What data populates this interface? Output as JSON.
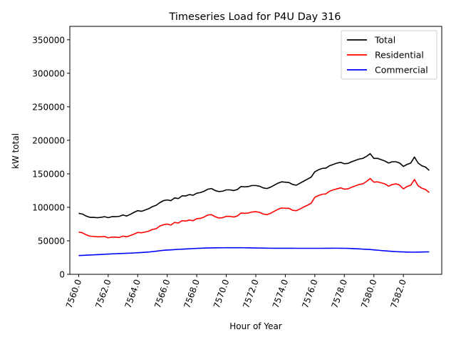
{
  "chart_data": {
    "type": "line",
    "title": "Timeseries Load for P4U   Day 316",
    "xlabel": "Hour of Year",
    "ylabel": "kW total",
    "xlim": [
      7559.4,
      7584.6
    ],
    "ylim": [
      0,
      370000
    ],
    "x_ticks": [
      7560,
      7562,
      7564,
      7566,
      7568,
      7570,
      7572,
      7574,
      7576,
      7578,
      7580,
      7582
    ],
    "x_tick_labels": [
      "7560.0",
      "7562.0",
      "7564.0",
      "7566.0",
      "7568.0",
      "7570.0",
      "7572.0",
      "7574.0",
      "7576.0",
      "7578.0",
      "7580.0",
      "7582.0"
    ],
    "y_ticks": [
      0,
      50000,
      100000,
      150000,
      200000,
      250000,
      300000,
      350000
    ],
    "y_tick_labels": [
      "0",
      "50000",
      "100000",
      "150000",
      "200000",
      "250000",
      "300000",
      "350000"
    ],
    "grid": false,
    "legend_position": "top-right",
    "x": [
      7560.0,
      7560.25,
      7560.5,
      7560.75,
      7561.0,
      7561.25,
      7561.5,
      7561.75,
      7562.0,
      7562.25,
      7562.5,
      7562.75,
      7563.0,
      7563.25,
      7563.5,
      7563.75,
      7564.0,
      7564.25,
      7564.5,
      7564.75,
      7565.0,
      7565.25,
      7565.5,
      7565.75,
      7566.0,
      7566.25,
      7566.5,
      7566.75,
      7567.0,
      7567.25,
      7567.5,
      7567.75,
      7568.0,
      7568.25,
      7568.5,
      7568.75,
      7569.0,
      7569.25,
      7569.5,
      7569.75,
      7570.0,
      7570.25,
      7570.5,
      7570.75,
      7571.0,
      7571.25,
      7571.5,
      7571.75,
      7572.0,
      7572.25,
      7572.5,
      7572.75,
      7573.0,
      7573.25,
      7573.5,
      7573.75,
      7574.0,
      7574.25,
      7574.5,
      7574.75,
      7575.0,
      7575.25,
      7575.5,
      7575.75,
      7576.0,
      7576.25,
      7576.5,
      7576.75,
      7577.0,
      7577.25,
      7577.5,
      7577.75,
      7578.0,
      7578.25,
      7578.5,
      7578.75,
      7579.0,
      7579.25,
      7579.5,
      7579.75,
      7580.0,
      7580.25,
      7580.5,
      7580.75,
      7581.0,
      7581.25,
      7581.5,
      7581.75,
      7582.0,
      7582.25,
      7582.5,
      7582.75,
      7583.0,
      7583.25,
      7583.5,
      7583.75
    ],
    "series": [
      {
        "name": "Total",
        "color": "#000000",
        "values": [
          91000,
          90000,
          87000,
          85000,
          85000,
          84500,
          85000,
          86000,
          84500,
          86000,
          86000,
          86500,
          88500,
          87000,
          89500,
          92500,
          95000,
          94000,
          96000,
          98000,
          101000,
          103000,
          107000,
          110000,
          111000,
          110000,
          114000,
          113000,
          117000,
          117000,
          119000,
          118000,
          121000,
          122000,
          124000,
          127000,
          128000,
          125000,
          123500,
          124000,
          126000,
          126000,
          125000,
          126500,
          131000,
          130500,
          131000,
          132500,
          132500,
          131500,
          129000,
          128000,
          130000,
          133000,
          136000,
          138000,
          137500,
          137000,
          134000,
          133000,
          136000,
          139000,
          142000,
          145000,
          153000,
          156000,
          158000,
          158500,
          162000,
          164000,
          166000,
          167000,
          165000,
          165500,
          168000,
          170000,
          172000,
          173000,
          176000,
          180000,
          173000,
          173000,
          171000,
          169000,
          166000,
          168000,
          168000,
          166000,
          161000,
          164000,
          166000,
          175000,
          166000,
          162000,
          160000,
          155000
        ]
      },
      {
        "name": "Residential",
        "color": "#ff0000",
        "values": [
          63000,
          62000,
          59000,
          57000,
          56500,
          56000,
          56000,
          56500,
          54500,
          55500,
          55500,
          55000,
          57000,
          56000,
          58000,
          60000,
          62500,
          62000,
          63000,
          64500,
          67000,
          68000,
          72000,
          74000,
          75000,
          73500,
          77500,
          76500,
          80000,
          79500,
          81000,
          80000,
          83000,
          83500,
          85500,
          88500,
          89000,
          86000,
          84000,
          84500,
          86500,
          86500,
          85500,
          87000,
          91500,
          91000,
          91500,
          93000,
          93500,
          92500,
          90000,
          89000,
          91000,
          94000,
          97000,
          99000,
          98500,
          98500,
          95500,
          95000,
          97500,
          100500,
          103000,
          106000,
          115000,
          117500,
          119500,
          120000,
          124000,
          126000,
          127500,
          129000,
          127000,
          127500,
          130000,
          132000,
          134000,
          135000,
          138500,
          143000,
          137500,
          138000,
          136500,
          135000,
          131500,
          134000,
          135000,
          133000,
          127500,
          131000,
          133000,
          141500,
          132000,
          128500,
          126500,
          122000
        ]
      },
      {
        "name": "Commercial",
        "color": "#0000ff",
        "values": [
          28000,
          28200,
          28500,
          28800,
          29000,
          29300,
          29600,
          29900,
          30200,
          30500,
          30700,
          31000,
          31200,
          31400,
          31600,
          31900,
          32200,
          32500,
          32900,
          33300,
          33900,
          34500,
          35200,
          35800,
          36200,
          36500,
          36900,
          37200,
          37500,
          37800,
          38100,
          38400,
          38700,
          38900,
          39100,
          39300,
          39400,
          39500,
          39550,
          39600,
          39650,
          39700,
          39700,
          39700,
          39650,
          39600,
          39500,
          39400,
          39300,
          39200,
          39100,
          39000,
          38950,
          38900,
          38900,
          38900,
          38900,
          38900,
          38850,
          38800,
          38800,
          38800,
          38800,
          38800,
          38800,
          38800,
          38800,
          38850,
          38900,
          38950,
          38950,
          38900,
          38800,
          38700,
          38500,
          38200,
          37900,
          37600,
          37300,
          37000,
          36500,
          36000,
          35500,
          35000,
          34600,
          34200,
          33900,
          33600,
          33400,
          33200,
          33100,
          33100,
          33200,
          33300,
          33400,
          33500
        ]
      }
    ]
  }
}
